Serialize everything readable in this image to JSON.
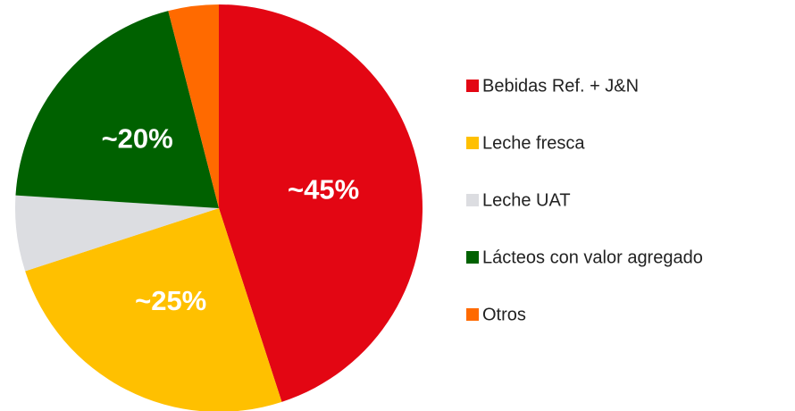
{
  "chart_data": {
    "type": "pie",
    "categories": [
      "Bebidas Ref. + J&N",
      "Leche fresca",
      "Leche UAT",
      "Lácteos con valor agregado",
      "Otros"
    ],
    "values": [
      45,
      25,
      6,
      20,
      4
    ],
    "value_labels": [
      "~45%",
      "~25%",
      null,
      "~20%",
      null
    ],
    "colors": [
      "#e30613",
      "#ffc000",
      "#dcdde1",
      "#006100",
      "#ff6a00"
    ],
    "legend": "right"
  }
}
